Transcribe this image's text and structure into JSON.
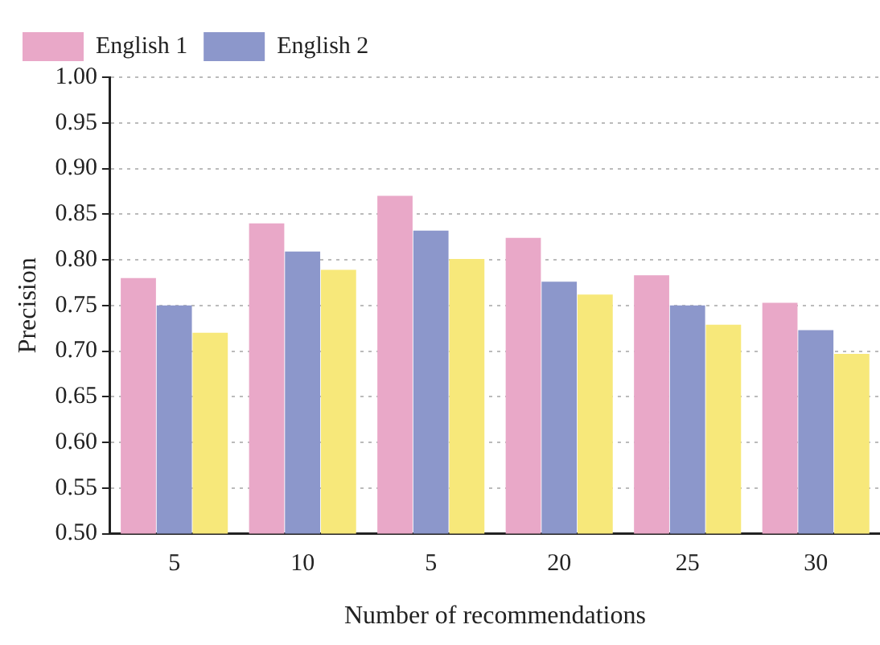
{
  "chart_data": {
    "type": "bar",
    "xlabel": "Number of recommendations",
    "ylabel": "Precision",
    "categories": [
      "5",
      "10",
      "5",
      "20",
      "25",
      "30"
    ],
    "series": [
      {
        "name": "English 1",
        "color": "#e9a8c8",
        "values": [
          0.78,
          0.84,
          0.87,
          0.824,
          0.783,
          0.753
        ]
      },
      {
        "name": "English 2",
        "color": "#8c97cb",
        "values": [
          0.75,
          0.809,
          0.832,
          0.776,
          0.75,
          0.723
        ]
      },
      {
        "color": "#f7e87a",
        "values": [
          0.72,
          0.789,
          0.801,
          0.762,
          0.729,
          0.697
        ]
      }
    ],
    "ylim": [
      0.5,
      1.0
    ],
    "yticks": [
      {
        "value": 0.5,
        "label": "0.50"
      },
      {
        "value": 0.55,
        "label": "0.55"
      },
      {
        "value": 0.6,
        "label": "0.60"
      },
      {
        "value": 0.65,
        "label": "0.65"
      },
      {
        "value": 0.7,
        "label": "0.70"
      },
      {
        "value": 0.75,
        "label": "0.75"
      },
      {
        "value": 0.8,
        "label": "0.80"
      },
      {
        "value": 0.85,
        "label": "0.85"
      },
      {
        "value": 0.9,
        "label": "0.90"
      },
      {
        "value": 0.95,
        "label": "0.95"
      },
      {
        "value": 1.0,
        "label": "1.00"
      }
    ],
    "grid": "y",
    "legend": "top left"
  }
}
